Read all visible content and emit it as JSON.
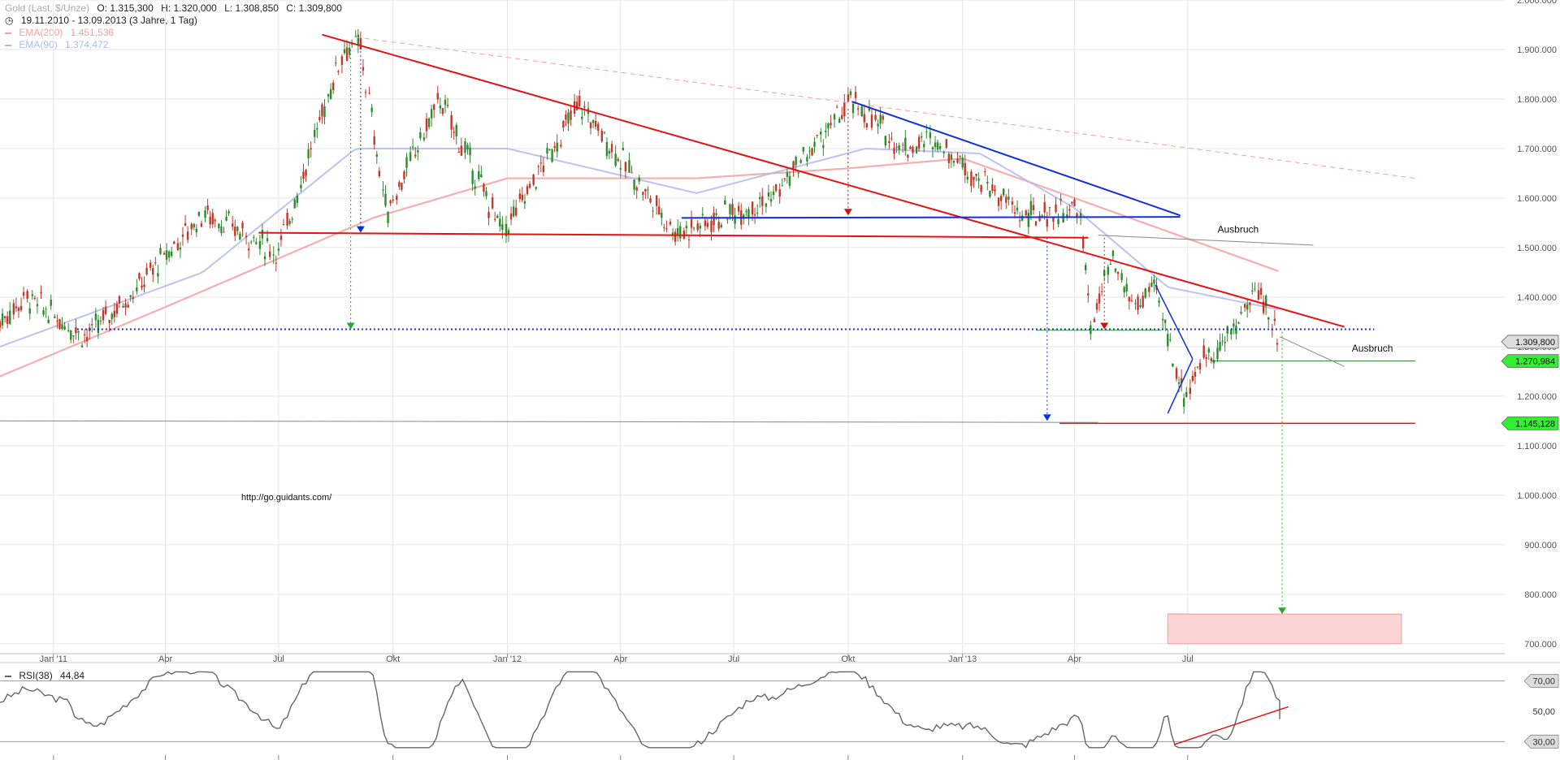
{
  "header": {
    "title": "Gold (Last, $/Unze)",
    "open": "O: 1.315,300",
    "high": "H: 1.320,000",
    "low": "L: 1.308,850",
    "close": "C: 1.309,800",
    "range": "19.11.2010 - 13.09.2013 (3 Jahre, 1 Tag)"
  },
  "legend": {
    "ema200_label": "EMA(200)",
    "ema200_value": "1.451,536",
    "ema90_label": "EMA(90)",
    "ema90_value": "1.374,472",
    "rsi_label": "RSI(38)",
    "rsi_value": "44,84"
  },
  "colors": {
    "up": "#2e8b2e",
    "down": "#c0392b",
    "ema200": "#f4a0a0",
    "ema90": "#b0b8ee",
    "trend_red": "#e81010",
    "trend_blue": "#1030e0",
    "grid": "#e6e6e6",
    "rsi": "#666666"
  },
  "chart_data": {
    "type": "candlestick",
    "instrument": "Gold (Last, $/Unze)",
    "ylim": [
      680000,
      2000000
    ],
    "x_ticks": [
      "Jan '11",
      "Apr",
      "Jul",
      "Okt",
      "Jan '12",
      "Apr",
      "Jul",
      "Okt",
      "Jan '13",
      "Apr",
      "Jul"
    ],
    "y_ticks": [
      "700.000",
      "800.000",
      "900.000",
      "1.000.000",
      "1.100.000",
      "1.200.000",
      "1.300.000",
      "1.400.000",
      "1.500.000",
      "1.600.000",
      "1.700.000",
      "1.800.000",
      "1.900.000",
      "2.000.000"
    ],
    "price_path": [
      {
        "date": "2010-11-19",
        "value": 1350000
      },
      {
        "date": "2010-12-10",
        "value": 1400000
      },
      {
        "date": "2011-01-28",
        "value": 1320000
      },
      {
        "date": "2011-03-10",
        "value": 1420000
      },
      {
        "date": "2011-05-02",
        "value": 1570000
      },
      {
        "date": "2011-06-10",
        "value": 1520000
      },
      {
        "date": "2011-07-01",
        "value": 1490000
      },
      {
        "date": "2011-08-22",
        "value": 1900000
      },
      {
        "date": "2011-09-05",
        "value": 1910000
      },
      {
        "date": "2011-09-26",
        "value": 1570000
      },
      {
        "date": "2011-11-08",
        "value": 1800000
      },
      {
        "date": "2011-12-29",
        "value": 1530000
      },
      {
        "date": "2012-02-28",
        "value": 1790000
      },
      {
        "date": "2012-05-16",
        "value": 1530000
      },
      {
        "date": "2012-08-01",
        "value": 1600000
      },
      {
        "date": "2012-10-04",
        "value": 1795000
      },
      {
        "date": "2012-11-15",
        "value": 1700000
      },
      {
        "date": "2012-12-10",
        "value": 1720000
      },
      {
        "date": "2013-01-10",
        "value": 1650000
      },
      {
        "date": "2013-02-20",
        "value": 1560000
      },
      {
        "date": "2013-04-05",
        "value": 1580000
      },
      {
        "date": "2013-04-15",
        "value": 1340000
      },
      {
        "date": "2013-05-01",
        "value": 1470000
      },
      {
        "date": "2013-05-20",
        "value": 1380000
      },
      {
        "date": "2013-06-05",
        "value": 1420000
      },
      {
        "date": "2013-06-28",
        "value": 1200000
      },
      {
        "date": "2013-07-15",
        "value": 1280000
      },
      {
        "date": "2013-08-01",
        "value": 1310000
      },
      {
        "date": "2013-08-27",
        "value": 1420000
      },
      {
        "date": "2013-09-13",
        "value": 1309800
      }
    ],
    "ema200": [
      {
        "date": "2010-11-19",
        "value": 1240000
      },
      {
        "date": "2011-04-01",
        "value": 1380000
      },
      {
        "date": "2011-09-15",
        "value": 1560000
      },
      {
        "date": "2012-01-01",
        "value": 1640000
      },
      {
        "date": "2012-06-01",
        "value": 1640000
      },
      {
        "date": "2012-10-01",
        "value": 1660000
      },
      {
        "date": "2013-01-01",
        "value": 1680000
      },
      {
        "date": "2013-04-01",
        "value": 1600000
      },
      {
        "date": "2013-09-13",
        "value": 1451536
      }
    ],
    "ema90": [
      {
        "date": "2010-11-19",
        "value": 1300000
      },
      {
        "date": "2011-05-01",
        "value": 1450000
      },
      {
        "date": "2011-09-01",
        "value": 1700000
      },
      {
        "date": "2012-01-01",
        "value": 1700000
      },
      {
        "date": "2012-06-01",
        "value": 1610000
      },
      {
        "date": "2012-10-15",
        "value": 1700000
      },
      {
        "date": "2013-01-15",
        "value": 1690000
      },
      {
        "date": "2013-04-01",
        "value": 1580000
      },
      {
        "date": "2013-06-15",
        "value": 1420000
      },
      {
        "date": "2013-09-13",
        "value": 1374472
      }
    ],
    "rsi": {
      "label": "RSI(38)",
      "last": 44.84,
      "levels": [
        30,
        70
      ],
      "ticks": [
        "70,00",
        "50,00",
        "30,00"
      ]
    },
    "price_labels": [
      {
        "value": 1309800,
        "text": "1.309,800"
      },
      {
        "value": 1270984,
        "text": "1.270,984"
      },
      {
        "value": 1145128,
        "text": "1.145,128"
      }
    ],
    "annotations": [
      {
        "text": "Ausbruch"
      },
      {
        "text": "Ausbruch"
      },
      {
        "text": "http://go.guidants.com/"
      }
    ]
  }
}
